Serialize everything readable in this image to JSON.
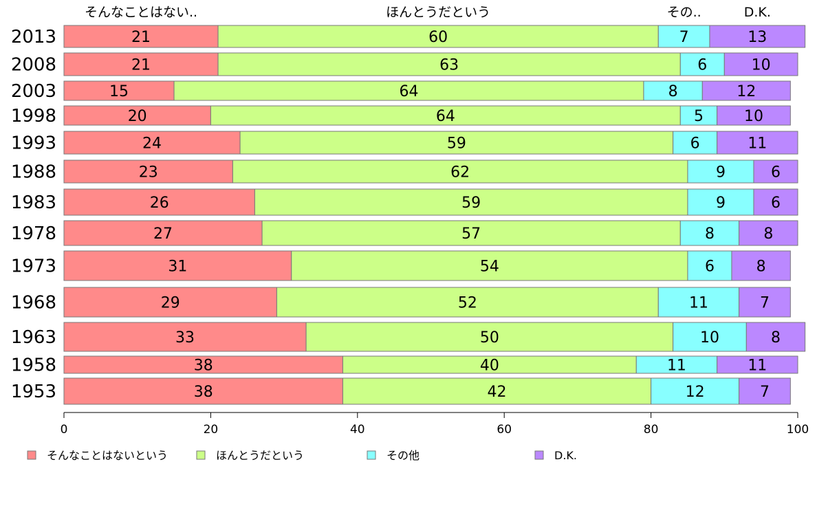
{
  "chart_data": {
    "type": "bar",
    "orientation": "horizontal",
    "stacked": true,
    "top_labels": [
      "そんなことはない..",
      "ほんとうだという",
      "その..",
      "D.K."
    ],
    "categories": [
      "2013",
      "2008",
      "2003",
      "1998",
      "1993",
      "1988",
      "1983",
      "1978",
      "1973",
      "1968",
      "1963",
      "1958",
      "1953"
    ],
    "series": [
      {
        "name": "そんなことはないという",
        "color": "#ff8a8a",
        "values": [
          21,
          21,
          15,
          20,
          24,
          23,
          26,
          27,
          31,
          29,
          33,
          38,
          38
        ]
      },
      {
        "name": "ほんとうだという",
        "color": "#ccff88",
        "values": [
          60,
          63,
          64,
          64,
          59,
          62,
          59,
          57,
          54,
          52,
          50,
          40,
          42
        ]
      },
      {
        "name": "その他",
        "color": "#88ffff",
        "values": [
          7,
          6,
          8,
          5,
          6,
          9,
          9,
          8,
          6,
          11,
          10,
          11,
          12
        ]
      },
      {
        "name": "D.K.",
        "color": "#bb88ff",
        "values": [
          13,
          10,
          12,
          10,
          11,
          6,
          6,
          8,
          8,
          7,
          8,
          11,
          7
        ]
      }
    ],
    "xlim": [
      0,
      100
    ],
    "xticks": [
      0,
      20,
      40,
      60,
      80,
      100
    ],
    "grid": false,
    "legend_position": "bottom"
  }
}
